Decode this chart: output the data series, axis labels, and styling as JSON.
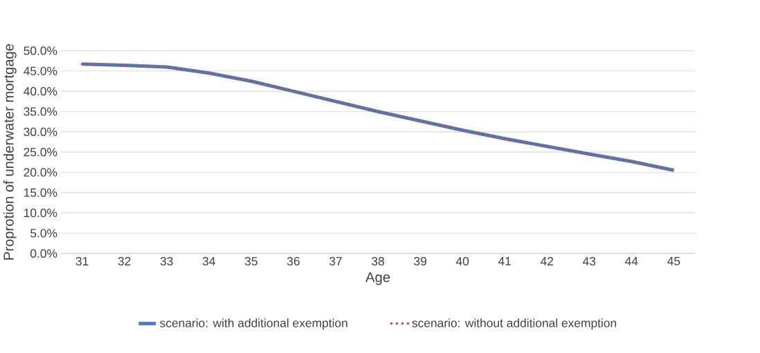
{
  "chart_data": {
    "type": "line",
    "xlabel": "Age",
    "ylabel": "Proprotion of underwater mortgage",
    "categories": [
      "31",
      "32",
      "33",
      "34",
      "35",
      "36",
      "37",
      "38",
      "39",
      "40",
      "41",
      "42",
      "43",
      "44",
      "45"
    ],
    "series": [
      {
        "name": "scenario: with additional exemption",
        "color": "#4a7ebb",
        "line_style": "solid",
        "values": [
          46.7,
          46.4,
          46.0,
          44.5,
          42.5,
          40.0,
          37.5,
          35.0,
          32.7,
          30.4,
          28.3,
          26.4,
          24.5,
          22.7,
          20.5
        ]
      },
      {
        "name": "scenario: without additional exemption",
        "color": "#be4b48",
        "line_style": "dotted",
        "values": [
          46.7,
          46.4,
          46.0,
          44.5,
          42.5,
          40.0,
          37.5,
          35.0,
          32.7,
          30.4,
          28.3,
          26.4,
          24.5,
          22.7,
          20.5
        ]
      }
    ],
    "ylim": [
      0,
      50
    ],
    "yticks": [
      {
        "value": 0,
        "label": "0.0%"
      },
      {
        "value": 5,
        "label": "5.0%"
      },
      {
        "value": 10,
        "label": "10.0%"
      },
      {
        "value": 15,
        "label": "15.0%"
      },
      {
        "value": 20,
        "label": "20.0%"
      },
      {
        "value": 25,
        "label": "25.0%"
      },
      {
        "value": 30,
        "label": "30.0%"
      },
      {
        "value": 35,
        "label": "35.0%"
      },
      {
        "value": 40,
        "label": "40.0%"
      },
      {
        "value": 45,
        "label": "45.0%"
      },
      {
        "value": 50,
        "label": "50.0%"
      }
    ],
    "grid": "y",
    "legend": "bottom",
    "marker": "none"
  }
}
